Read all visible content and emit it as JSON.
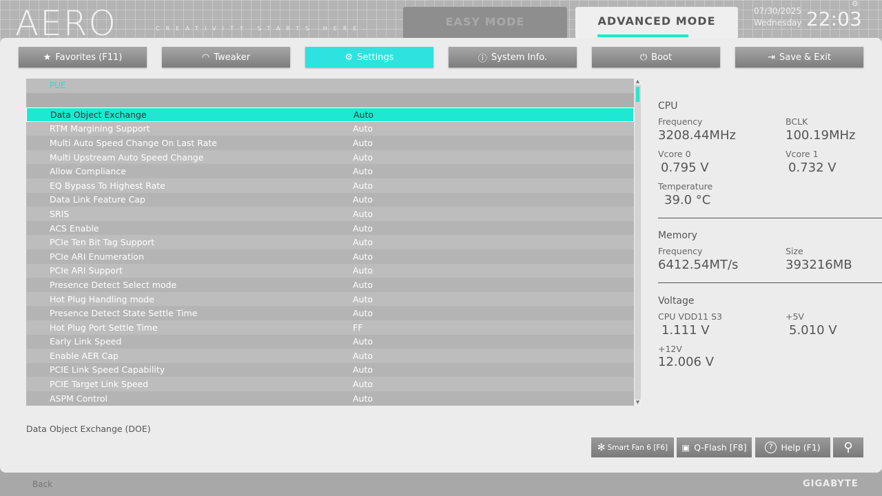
{
  "header": {
    "logo": "AERO",
    "tagline": "CREATIVITY STARTS HERE.",
    "easy_mode": "EASY MODE",
    "advanced_mode": "ADVANCED MODE",
    "date": "07/30/2025",
    "day": "Wednesday",
    "time": "22:03"
  },
  "tabs": [
    {
      "label": "Favorites (F11)",
      "icon": "folder-star-icon"
    },
    {
      "label": "Tweaker",
      "icon": "gauge-icon"
    },
    {
      "label": "Settings",
      "icon": "gear-icon",
      "active": true
    },
    {
      "label": "System Info.",
      "icon": "info-icon"
    },
    {
      "label": "Boot",
      "icon": "power-icon"
    },
    {
      "label": "Save & Exit",
      "icon": "exit-icon"
    }
  ],
  "list": {
    "title": "PUE",
    "rows": [
      {
        "name": "Data Object Exchange",
        "value": "Auto"
      },
      {
        "name": "RTM Margining Support",
        "value": "Auto"
      },
      {
        "name": "Multi Auto Speed Change On Last Rate",
        "value": "Auto"
      },
      {
        "name": "Multi Upstream Auto Speed Change",
        "value": "Auto"
      },
      {
        "name": "Allow Compliance",
        "value": "Auto"
      },
      {
        "name": "EQ Bypass To Highest Rate",
        "value": "Auto"
      },
      {
        "name": "Data Link Feature Cap",
        "value": "Auto"
      },
      {
        "name": "SRIS",
        "value": "Auto"
      },
      {
        "name": "ACS Enable",
        "value": "Auto"
      },
      {
        "name": "PCIe Ten Bit Tag Support",
        "value": "Auto"
      },
      {
        "name": "PCIe ARI Enumeration",
        "value": "Auto"
      },
      {
        "name": "PCIe ARI Support",
        "value": "Auto"
      },
      {
        "name": "Presence Detect Select mode",
        "value": "Auto"
      },
      {
        "name": "Hot Plug Handling mode",
        "value": "Auto"
      },
      {
        "name": "Presence Detect State Settle Time",
        "value": "Auto"
      },
      {
        "name": "Hot Plug Port Settle Time",
        "value": "FF"
      },
      {
        "name": "Early Link Speed",
        "value": "Auto"
      },
      {
        "name": "Enable AER Cap",
        "value": "Auto"
      },
      {
        "name": "PCIE Link Speed Capability",
        "value": "Auto"
      },
      {
        "name": "PCIE Target Link Speed",
        "value": "Auto"
      },
      {
        "name": "ASPM Control",
        "value": "Auto"
      }
    ]
  },
  "info": {
    "cpu": {
      "title": "CPU",
      "freq_label": "Frequency",
      "freq": "3208.44MHz",
      "bclk_label": "BCLK",
      "bclk": "100.19MHz",
      "vcore0_label": "Vcore 0",
      "vcore0": "0.795 V",
      "vcore1_label": "Vcore 1",
      "vcore1": "0.732 V",
      "temp_label": "Temperature",
      "temp": "39.0 °C"
    },
    "memory": {
      "title": "Memory",
      "freq_label": "Frequency",
      "freq": "6412.54MT/s",
      "size_label": "Size",
      "size": "393216MB"
    },
    "voltage": {
      "title": "Voltage",
      "vdd_label": "CPU VDD11 S3",
      "vdd": "1.111 V",
      "v5_label": "+5V",
      "v5": "5.010 V",
      "v12_label": "+12V",
      "v12": "12.006 V"
    }
  },
  "help_text": "Data Object Exchange (DOE)",
  "buttons": {
    "smart_fan": "Smart Fan 6 [F6]",
    "qflash": "Q-Flash [F8]",
    "help": "Help (F1)"
  },
  "footer": {
    "back": "Back",
    "brand": "GIGABYTE"
  },
  "colors": {
    "accent": "#1ee8d2"
  }
}
